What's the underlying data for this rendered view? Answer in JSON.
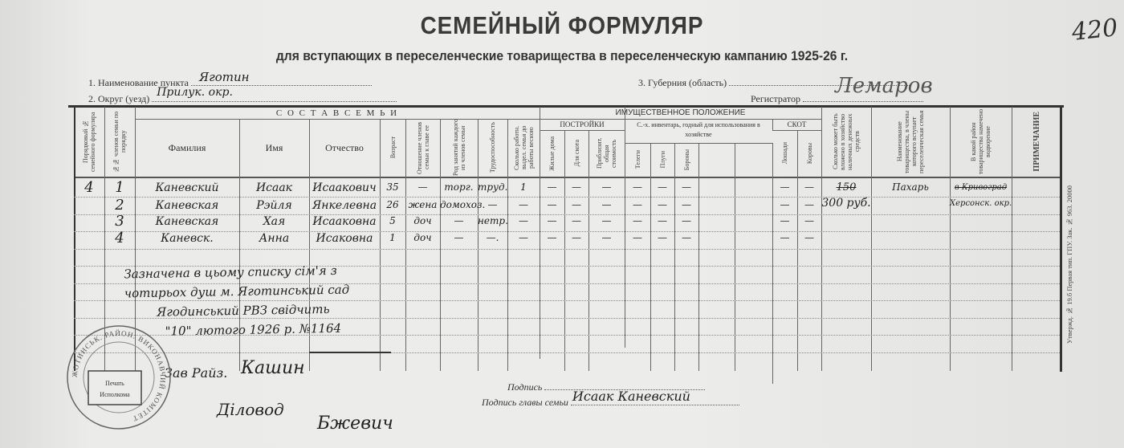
{
  "page_number": "420",
  "title": "СЕМЕЙНЫЙ ФОРМУЛЯР",
  "subtitle": "для вступающих в переселенческие товарищества в переселенческую кампанию 1925-26 г.",
  "fields": {
    "point_label": "1. Наименование пункта",
    "point_value": "Яготин",
    "district_label": "2. Округ (уезд)",
    "district_value": "Прилук. окр.",
    "province_label": "3. Губерния (область)",
    "province_value": "",
    "registrar_label": "Регистратор",
    "registrar_signature": "Лемаров"
  },
  "table": {
    "band_family": "С О С Т А В   С Е М Ь И",
    "band_property": "ИМУЩЕСТВЕННОЕ ПОЛОЖЕНИЕ",
    "band_buildings": "ПОСТРОЙКИ",
    "band_inventory": "С.-х. инвентарь, годный для использования в хозяйстве",
    "band_livestock": "СКОТ",
    "columns": [
      "Порядковый № семейного формуляра",
      "№№ членов семьи по порядку",
      "Фамилия",
      "Имя",
      "Отчество",
      "Возраст",
      "Отношение членов семьи к главе ее",
      "Род занятий каждого из членов семьи",
      "Трудоспособность",
      "Сколько работн. выдел. семья до работы весною",
      "Жилые дома",
      "Для скота",
      "Приблизит. общая стоимость",
      "Телеги",
      "Плуги",
      "Бороны",
      "",
      "",
      "Лошади",
      "Коровы",
      "Сколько может быть вложено в хозяйство наличных денежных средств",
      "Наименование товарищества, в члены которого вступает переселенческая семья",
      "В какой район товарищества намечено водворение",
      "ПРИМЕЧАНИЕ"
    ],
    "rows": [
      [
        "4",
        "1",
        "Каневский",
        "Исаак",
        "Исаакович",
        "35",
        "—",
        "торг.",
        "труд.",
        "1",
        "—",
        "—",
        "—",
        "—",
        "—",
        "—",
        "",
        "",
        "—",
        "—",
        "",
        "Пахарь",
        "",
        ""
      ],
      [
        "",
        "2",
        "Каневская",
        "Рэйля",
        "Янкелевна",
        "26",
        "жена",
        "домохоз.",
        "—",
        "—",
        "—",
        "—",
        "—",
        "—",
        "—",
        "—",
        "",
        "",
        "—",
        "—",
        "",
        "",
        "",
        ""
      ],
      [
        "",
        "3",
        "Каневская",
        "Хая",
        "Исааковна",
        "5",
        "доч",
        "—",
        "нетр.",
        "—",
        "—",
        "—",
        "—",
        "—",
        "—",
        "—",
        "",
        "",
        "—",
        "—",
        "",
        "",
        "",
        ""
      ],
      [
        "",
        "4",
        "Каневск.",
        "Анна",
        "Исаковна",
        "1",
        "доч",
        "—",
        "—.",
        "—",
        "—",
        "—",
        "—",
        "—",
        "—",
        "—",
        "",
        "",
        "—",
        "—",
        "",
        "",
        "",
        ""
      ]
    ],
    "amount_struck": "150",
    "amount": "300 руб.",
    "region_struck": "в Кривоград",
    "region": "Херсонск. окр."
  },
  "note": [
    "Зазначена в цьому списку сім'я з",
    "чотирьох душ м. Яготинський сад",
    "Ягодинський РВЗ свідчить",
    "\"10\" лютого 1926 р. №1164"
  ],
  "signatures": {
    "head_label": "Зав Райз.",
    "head_signature": "Кашин",
    "clerk_label": "Діловод",
    "clerk_signature": "Бжевич",
    "sign_label": "Подпись",
    "family_head_label": "Подпись главы семьи",
    "family_head_value": "Исаак Каневский"
  },
  "stamp": {
    "ring_text": "ЖОТИНСЬК. РАЙОН. ВИКОНАВЧИЙ КОМІТЕТ",
    "inner_text": "Печать Исполкома"
  },
  "printer_note": "Утвержд. № 19.б Первая тип. ГПУ. Зак. № 963. 20000"
}
